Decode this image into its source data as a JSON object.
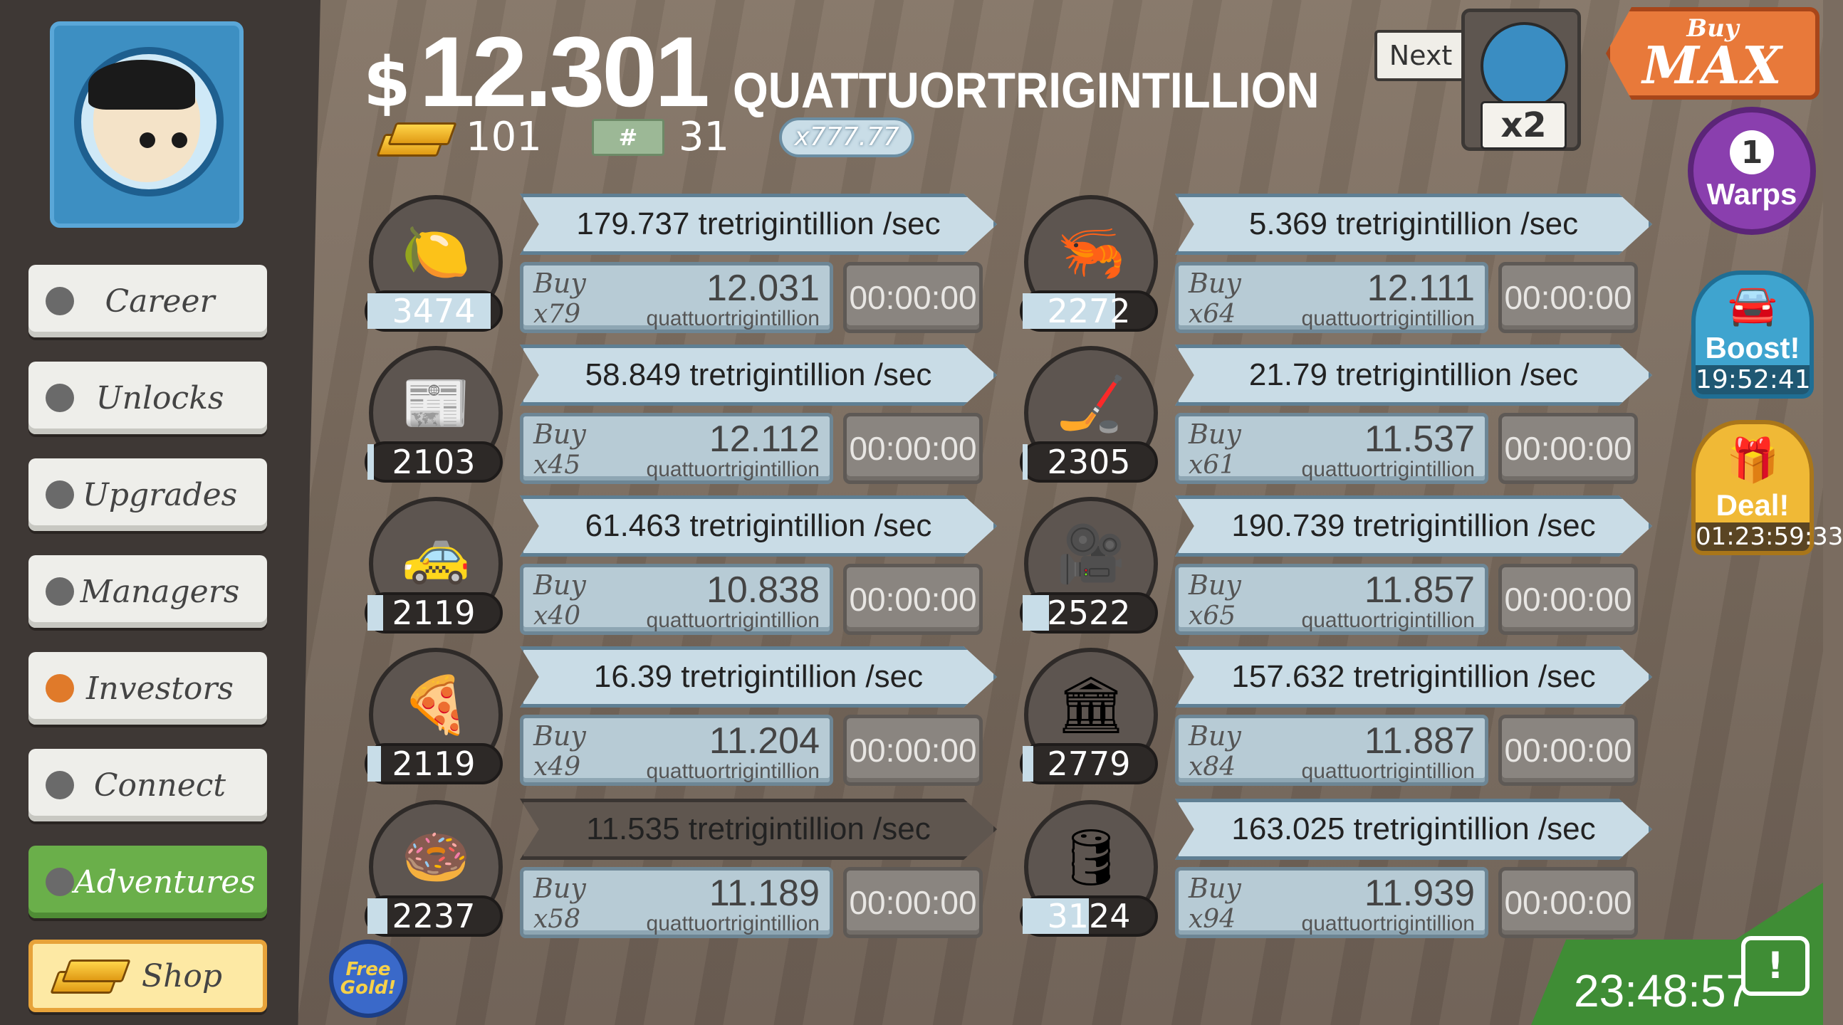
{
  "money": {
    "symbol": "$",
    "amount": "12.301",
    "unit": "QUATTUORTRIGINTILLION"
  },
  "currencies": {
    "gold": "101",
    "megatickets": "31",
    "multiplier": "x777.77"
  },
  "header": {
    "next_label": "Next",
    "next_multiplier": "x2",
    "buymax_top": "Buy",
    "buymax_bottom": "MAX"
  },
  "sidebar": {
    "items": [
      {
        "label": "Career"
      },
      {
        "label": "Unlocks"
      },
      {
        "label": "Upgrades"
      },
      {
        "label": "Managers"
      },
      {
        "label": "Investors"
      },
      {
        "label": "Connect"
      },
      {
        "label": "Adventures"
      },
      {
        "label": "Shop"
      }
    ]
  },
  "businesses": [
    {
      "icon": "lemon-icon",
      "glyph": "🍋",
      "count": "3474",
      "progress": 0.93,
      "rate": "179.737 tretrigintillion /sec",
      "buy_qty": "x79",
      "price": "12.031",
      "price_unit": "quattuortrigintillion",
      "timer": "00:00:00"
    },
    {
      "icon": "newspaper-icon",
      "glyph": "📰",
      "count": "2103",
      "progress": 0.05,
      "rate": "58.849 tretrigintillion /sec",
      "buy_qty": "x45",
      "price": "12.112",
      "price_unit": "quattuortrigintillion",
      "timer": "00:00:00"
    },
    {
      "icon": "car-wash-icon",
      "glyph": "🚕",
      "count": "2119",
      "progress": 0.12,
      "rate": "61.463 tretrigintillion /sec",
      "buy_qty": "x40",
      "price": "10.838",
      "price_unit": "quattuortrigintillion",
      "timer": "00:00:00"
    },
    {
      "icon": "pizza-icon",
      "glyph": "🍕",
      "count": "2119",
      "progress": 0.1,
      "rate": "16.39 tretrigintillion /sec",
      "buy_qty": "x49",
      "price": "11.204",
      "price_unit": "quattuortrigintillion",
      "timer": "00:00:00"
    },
    {
      "icon": "donut-icon",
      "glyph": "🍩",
      "count": "2237",
      "progress": 0.15,
      "rate": "11.535 tretrigintillion /sec",
      "buy_qty": "x58",
      "price": "11.189",
      "price_unit": "quattuortrigintillion",
      "timer": "00:00:00",
      "dark": true
    },
    {
      "icon": "shrimp-icon",
      "glyph": "🦐",
      "count": "2272",
      "progress": 0.7,
      "rate": "5.369 tretrigintillion /sec",
      "buy_qty": "x64",
      "price": "12.111",
      "price_unit": "quattuortrigintillion",
      "timer": "00:00:00"
    },
    {
      "icon": "hockey-icon",
      "glyph": "🏒",
      "count": "2305",
      "progress": 0.04,
      "rate": "21.79 tretrigintillion /sec",
      "buy_qty": "x61",
      "price": "11.537",
      "price_unit": "quattuortrigintillion",
      "timer": "00:00:00"
    },
    {
      "icon": "movie-camera-icon",
      "glyph": "🎥",
      "count": "2522",
      "progress": 0.2,
      "rate": "190.739 tretrigintillion /sec",
      "buy_qty": "x65",
      "price": "11.857",
      "price_unit": "quattuortrigintillion",
      "timer": "00:00:00"
    },
    {
      "icon": "bank-icon",
      "glyph": "🏛",
      "count": "2779",
      "progress": 0.08,
      "rate": "157.632 tretrigintillion /sec",
      "buy_qty": "x84",
      "price": "11.887",
      "price_unit": "quattuortrigintillion",
      "timer": "00:00:00"
    },
    {
      "icon": "oil-rig-icon",
      "glyph": "🛢",
      "count": "3124",
      "progress": 0.5,
      "rate": "163.025 tretrigintillion /sec",
      "buy_qty": "x94",
      "price": "11.939",
      "price_unit": "quattuortrigintillion",
      "timer": "00:00:00"
    }
  ],
  "buy_label": "Buy",
  "warps": {
    "count": "1",
    "label": "Warps"
  },
  "boost": {
    "label": "Boost!",
    "timer": "19:52:41"
  },
  "deal": {
    "label": "Deal!",
    "timer": "01:23:59:33"
  },
  "free_gold": {
    "line1": "Free",
    "line2": "Gold!"
  },
  "clock": "23:48:57"
}
